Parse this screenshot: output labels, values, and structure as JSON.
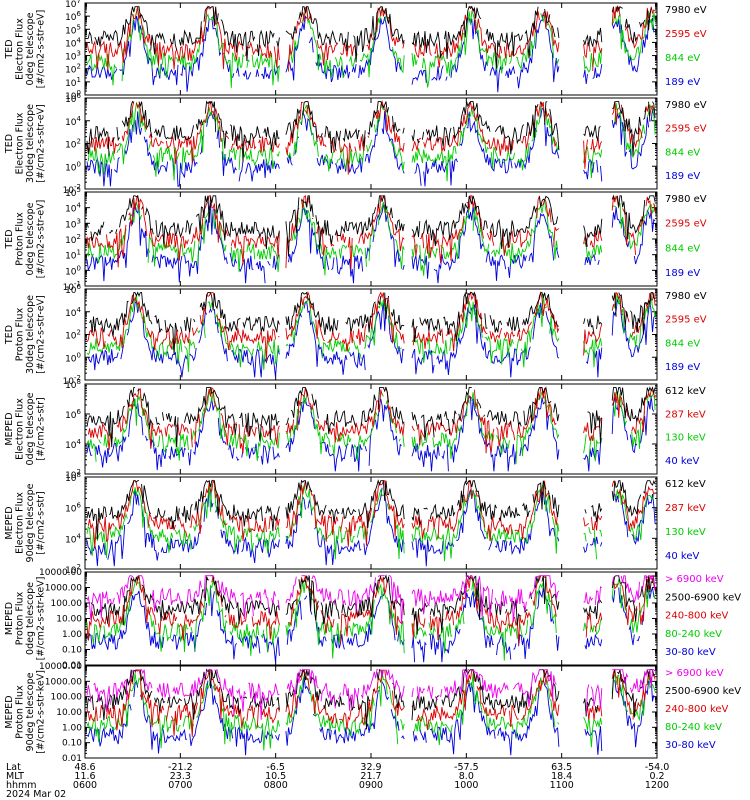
{
  "chart_data": [
    {
      "type": "line",
      "ylabel": [
        "TED",
        "Electron Flux",
        "0deg telescope",
        "[#/cm2-s-str-eV]"
      ],
      "yscale": "log",
      "yticks": [
        "10^0",
        "10^1",
        "10^2",
        "10^3",
        "10^4",
        "10^5",
        "10^6",
        "10^7"
      ],
      "ylim": [
        1,
        10000000
      ],
      "series": [
        {
          "name": "7980 eV",
          "color": "#000000"
        },
        {
          "name": "2595 eV",
          "color": "#dd0000"
        },
        {
          "name": "844 eV",
          "color": "#00cc00"
        },
        {
          "name": "189 eV",
          "color": "#0000dd"
        }
      ]
    },
    {
      "type": "line",
      "ylabel": [
        "TED",
        "Electron Flux",
        "30deg telescope",
        "[#/cm2-s-str-eV]"
      ],
      "yscale": "log",
      "yticks": [
        "10^-2",
        "10^0",
        "10^2",
        "10^4",
        "10^6"
      ],
      "ylim": [
        0.01,
        1000000
      ],
      "series": [
        {
          "name": "7980 eV",
          "color": "#000000"
        },
        {
          "name": "2595 eV",
          "color": "#dd0000"
        },
        {
          "name": "844 eV",
          "color": "#00cc00"
        },
        {
          "name": "189 eV",
          "color": "#0000dd"
        }
      ]
    },
    {
      "type": "line",
      "ylabel": [
        "TED",
        "Proton Flux",
        "0deg telescope",
        "[#/cm2-s-str-eV]"
      ],
      "yscale": "log",
      "yticks": [
        "10^-1",
        "10^0",
        "10^1",
        "10^2",
        "10^3",
        "10^4",
        "10^5"
      ],
      "ylim": [
        0.1,
        100000
      ],
      "series": [
        {
          "name": "7980 eV",
          "color": "#000000"
        },
        {
          "name": "2595 eV",
          "color": "#dd0000"
        },
        {
          "name": "844 eV",
          "color": "#00cc00"
        },
        {
          "name": "189 eV",
          "color": "#0000dd"
        }
      ]
    },
    {
      "type": "line",
      "ylabel": [
        "TED",
        "Proton Flux",
        "30deg telescope",
        "[#/cm2-s-str-eV]"
      ],
      "yscale": "log",
      "yticks": [
        "10^-2",
        "10^0",
        "10^2",
        "10^4",
        "10^6"
      ],
      "ylim": [
        0.01,
        1000000
      ],
      "series": [
        {
          "name": "7980 eV",
          "color": "#000000"
        },
        {
          "name": "2595 eV",
          "color": "#dd0000"
        },
        {
          "name": "844 eV",
          "color": "#00cc00"
        },
        {
          "name": "189 eV",
          "color": "#0000dd"
        }
      ]
    },
    {
      "type": "line",
      "ylabel": [
        "MEPED",
        "Electron Flux",
        "0deg telescope",
        "[#/cm2-s-str]"
      ],
      "yscale": "log",
      "yticks": [
        "10^2",
        "10^4",
        "10^6",
        "10^8"
      ],
      "ylim": [
        100,
        100000000
      ],
      "series": [
        {
          "name": "612 keV",
          "color": "#000000"
        },
        {
          "name": "287 keV",
          "color": "#dd0000"
        },
        {
          "name": "130 keV",
          "color": "#00cc00"
        },
        {
          "name": "40 keV",
          "color": "#0000dd"
        }
      ]
    },
    {
      "type": "line",
      "ylabel": [
        "MEPED",
        "Electron Flux",
        "90deg telescope",
        "[#/cm2-s-str]"
      ],
      "yscale": "log",
      "yticks": [
        "10^2",
        "10^4",
        "10^6",
        "10^8"
      ],
      "ylim": [
        100,
        100000000
      ],
      "series": [
        {
          "name": "612 keV",
          "color": "#000000"
        },
        {
          "name": "287 keV",
          "color": "#dd0000"
        },
        {
          "name": "130 keV",
          "color": "#00cc00"
        },
        {
          "name": "40 keV",
          "color": "#0000dd"
        }
      ]
    },
    {
      "type": "line",
      "ylabel": [
        "MEPED",
        "Proton Flux",
        "0deg telescope",
        "[#/cm2-s-str-keV]"
      ],
      "yscale": "log",
      "yticks": [
        "0.01",
        "0.10",
        "1.00",
        "10.00",
        "100.00",
        "1000.00",
        "10000.00"
      ],
      "ylim": [
        0.01,
        10000
      ],
      "series": [
        {
          "name": "> 6900 keV",
          "color": "#ee00ee"
        },
        {
          "name": "2500-6900 keV",
          "color": "#000000"
        },
        {
          "name": "240-800 keV",
          "color": "#dd0000"
        },
        {
          "name": "80-240 keV",
          "color": "#00cc00"
        },
        {
          "name": "30-80 keV",
          "color": "#0000dd"
        }
      ]
    },
    {
      "type": "line",
      "ylabel": [
        "MEPED",
        "Proton Flux",
        "90deg telescope",
        "[#/cm2-s-str-keV]"
      ],
      "yscale": "log",
      "yticks": [
        "0.01",
        "0.10",
        "1.00",
        "10.00",
        "100.00",
        "1000.00",
        "10000.00"
      ],
      "ylim": [
        0.01,
        10000
      ],
      "series": [
        {
          "name": "> 6900 keV",
          "color": "#ee00ee"
        },
        {
          "name": "2500-6900 keV",
          "color": "#000000"
        },
        {
          "name": "240-800 keV",
          "color": "#dd0000"
        },
        {
          "name": "80-240 keV",
          "color": "#00cc00"
        },
        {
          "name": "30-80 keV",
          "color": "#0000dd"
        }
      ]
    }
  ],
  "x_axis": {
    "row_labels": [
      "Lat",
      "MLT",
      "hhmm",
      "2024 Mar 02"
    ],
    "ticks": [
      {
        "lat": "48.6",
        "mlt": "11.6",
        "hhmm": "0600"
      },
      {
        "lat": "-21.2",
        "mlt": "23.3",
        "hhmm": "0700"
      },
      {
        "lat": "-6.5",
        "mlt": "10.5",
        "hhmm": "0800"
      },
      {
        "lat": "32.9",
        "mlt": "21.7",
        "hhmm": "0900"
      },
      {
        "lat": "-57.5",
        "mlt": "8.0",
        "hhmm": "1000"
      },
      {
        "lat": "63.5",
        "mlt": "18.4",
        "hhmm": "1100"
      },
      {
        "lat": "-54.0",
        "mlt": "0.2",
        "hhmm": "1200"
      }
    ]
  }
}
